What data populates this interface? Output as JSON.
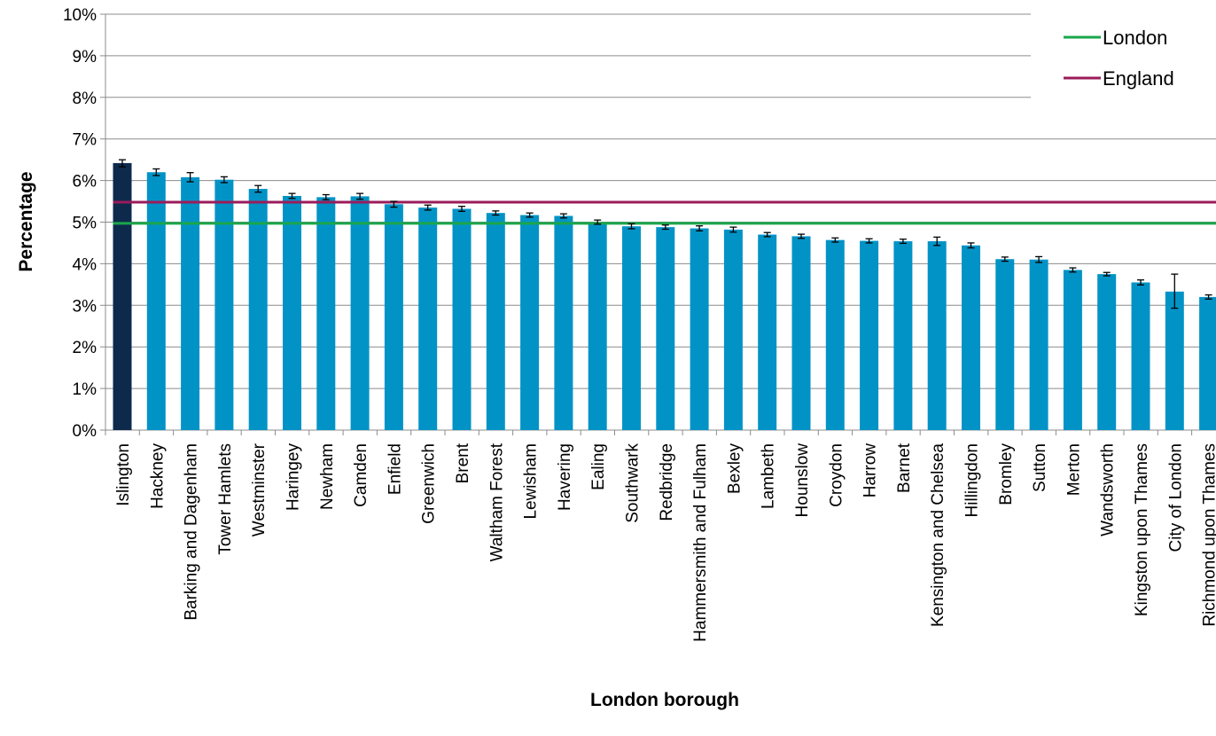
{
  "chart_data": {
    "type": "bar",
    "xlabel": "London borough",
    "ylabel": "Percentage",
    "ylim": [
      0,
      10
    ],
    "ytick_values": [
      0,
      1,
      2,
      3,
      4,
      5,
      6,
      7,
      8,
      9,
      10
    ],
    "ytick_labels": [
      "0%",
      "1%",
      "2%",
      "3%",
      "4%",
      "5%",
      "6%",
      "7%",
      "8%",
      "9%",
      "10%"
    ],
    "grid": true,
    "legend_position": "top-right",
    "categories": [
      "Islington",
      "Hackney",
      "Barking and Dagenham",
      "Tower Hamlets",
      "Westminster",
      "Haringey",
      "Newham",
      "Camden",
      "Enfield",
      "Greenwich",
      "Brent",
      "Waltham Forest",
      "Lewisham",
      "Havering",
      "Ealing",
      "Southwark",
      "Redbridge",
      "Hammersmith and Fulham",
      "Bexley",
      "Lambeth",
      "Hounslow",
      "Croydon",
      "Harrow",
      "Barnet",
      "Kensington and Chelsea",
      "Hillingdon",
      "Bromley",
      "Sutton",
      "Merton",
      "Wandsworth",
      "Kingston upon Thames",
      "City of London",
      "Richmond upon Thames"
    ],
    "values": [
      6.42,
      6.2,
      6.08,
      6.02,
      5.8,
      5.63,
      5.6,
      5.62,
      5.43,
      5.35,
      5.32,
      5.22,
      5.17,
      5.15,
      5.0,
      4.9,
      4.88,
      4.85,
      4.82,
      4.7,
      4.66,
      4.57,
      4.55,
      4.54,
      4.54,
      4.44,
      4.11,
      4.1,
      3.85,
      3.75,
      3.55,
      3.33,
      3.2
    ],
    "error_low": [
      6.33,
      6.12,
      5.97,
      5.95,
      5.72,
      5.57,
      5.54,
      5.55,
      5.36,
      5.29,
      5.26,
      5.17,
      5.12,
      5.1,
      4.95,
      4.84,
      4.83,
      4.79,
      4.76,
      4.65,
      4.61,
      4.52,
      4.5,
      4.49,
      4.44,
      4.38,
      4.06,
      4.03,
      3.8,
      3.71,
      3.49,
      2.93,
      3.15
    ],
    "error_high": [
      6.5,
      6.28,
      6.19,
      6.09,
      5.88,
      5.69,
      5.66,
      5.69,
      5.5,
      5.41,
      5.38,
      5.27,
      5.22,
      5.2,
      5.05,
      4.96,
      4.93,
      4.91,
      4.88,
      4.75,
      4.71,
      4.62,
      4.6,
      4.59,
      4.64,
      4.5,
      4.16,
      4.17,
      3.9,
      3.79,
      3.61,
      3.75,
      3.25
    ],
    "highlight_index": 0,
    "bar_color": "#0293C6",
    "highlight_color": "#0D2A4D",
    "reference_lines": [
      {
        "name": "London",
        "value": 4.97,
        "color": "#1BA64B"
      },
      {
        "name": "England",
        "value": 5.48,
        "color": "#9B1B5A"
      }
    ]
  }
}
